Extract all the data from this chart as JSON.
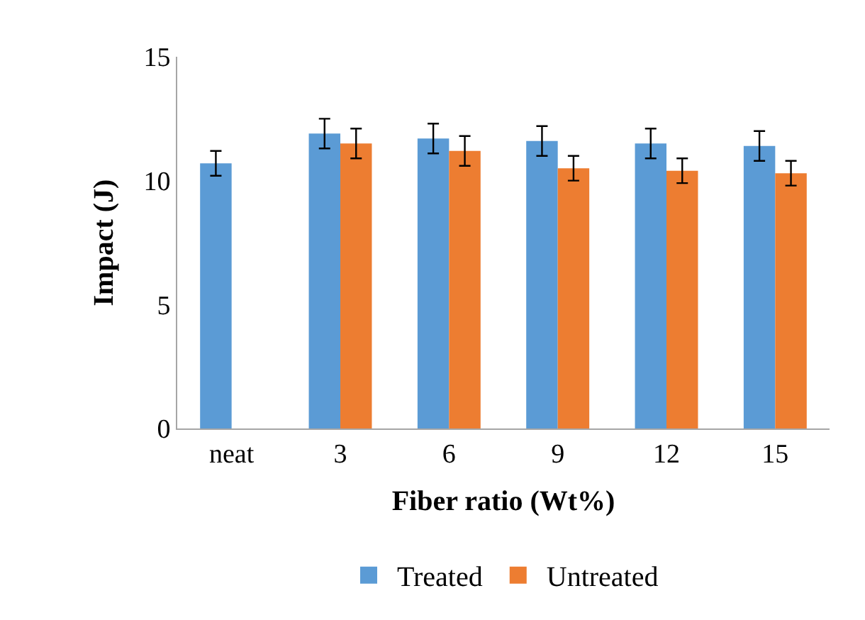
{
  "chart_data": {
    "type": "bar",
    "xlabel": "Fiber ratio (Wt%)",
    "ylabel": "Impact (J)",
    "categories": [
      "neat",
      "3",
      "6",
      "9",
      "12",
      "15"
    ],
    "series": [
      {
        "name": "Treated",
        "color": "#5b9bd5",
        "values": [
          10.7,
          11.9,
          11.7,
          11.6,
          11.5,
          11.4
        ],
        "errors": [
          0.5,
          0.6,
          0.6,
          0.6,
          0.6,
          0.6
        ]
      },
      {
        "name": "Untreated",
        "color": "#ed7d31",
        "values": [
          null,
          11.5,
          11.2,
          10.5,
          10.4,
          10.3
        ],
        "errors": [
          null,
          0.6,
          0.6,
          0.5,
          0.5,
          0.5
        ]
      }
    ],
    "ylim": [
      0,
      15
    ],
    "yticks": [
      0,
      5,
      10,
      15
    ],
    "grid": false,
    "legend": "bottom"
  }
}
